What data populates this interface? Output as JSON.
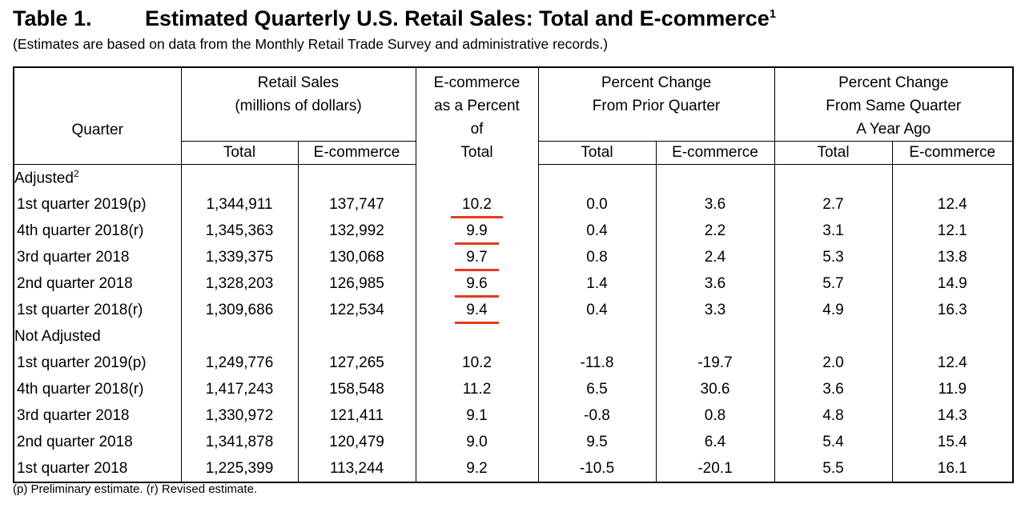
{
  "title": {
    "number": "Table 1.",
    "text": "Estimated Quarterly U.S. Retail Sales: Total and E-commerce",
    "sup": "1"
  },
  "subtitle": "(Estimates are based on data from the Monthly Retail Trade Survey and administrative records.)",
  "headers": {
    "quarter": "Quarter",
    "retail_sales_1": "Retail Sales",
    "retail_sales_2": "(millions of dollars)",
    "ecom_pct_1": "E-commerce",
    "ecom_pct_2": "as a Percent",
    "ecom_pct_3": "of",
    "ecom_pct_4": "Total",
    "prior_1": "Percent Change",
    "prior_2": "From Prior Quarter",
    "same_1": "Percent Change",
    "same_2": "From Same Quarter",
    "same_3": "A Year Ago",
    "total": "Total",
    "ecommerce": "E-commerce"
  },
  "sections": {
    "adjusted": "Adjusted",
    "adjusted_sup": "2",
    "not_adjusted": "Not Adjusted"
  },
  "adjusted_rows": [
    {
      "quarter": "1st quarter 2019(p)",
      "total": "1,344,911",
      "ecom": "137,747",
      "pct": "10.2",
      "pq_total": "0.0",
      "pq_ecom": "3.6",
      "yq_total": "2.7",
      "yq_ecom": "12.4"
    },
    {
      "quarter": "4th quarter 2018(r)",
      "total": "1,345,363",
      "ecom": "132,992",
      "pct": "9.9",
      "pq_total": "0.4",
      "pq_ecom": "2.2",
      "yq_total": "3.1",
      "yq_ecom": "12.1"
    },
    {
      "quarter": "3rd quarter 2018",
      "total": "1,339,375",
      "ecom": "130,068",
      "pct": "9.7",
      "pq_total": "0.8",
      "pq_ecom": "2.4",
      "yq_total": "5.3",
      "yq_ecom": "13.8"
    },
    {
      "quarter": "2nd quarter 2018",
      "total": "1,328,203",
      "ecom": "126,985",
      "pct": "9.6",
      "pq_total": "1.4",
      "pq_ecom": "3.6",
      "yq_total": "5.7",
      "yq_ecom": "14.9"
    },
    {
      "quarter": "1st quarter 2018(r)",
      "total": "1,309,686",
      "ecom": "122,534",
      "pct": "9.4",
      "pq_total": "0.4",
      "pq_ecom": "3.3",
      "yq_total": "4.9",
      "yq_ecom": "16.3"
    }
  ],
  "not_adjusted_rows": [
    {
      "quarter": "1st quarter 2019(p)",
      "total": "1,249,776",
      "ecom": "127,265",
      "pct": "10.2",
      "pq_total": "-11.8",
      "pq_ecom": "-19.7",
      "yq_total": "2.0",
      "yq_ecom": "12.4"
    },
    {
      "quarter": "4th quarter 2018(r)",
      "total": "1,417,243",
      "ecom": "158,548",
      "pct": "11.2",
      "pq_total": "6.5",
      "pq_ecom": "30.6",
      "yq_total": "3.6",
      "yq_ecom": "11.9"
    },
    {
      "quarter": "3rd quarter 2018",
      "total": "1,330,972",
      "ecom": "121,411",
      "pct": "9.1",
      "pq_total": "-0.8",
      "pq_ecom": "0.8",
      "yq_total": "4.8",
      "yq_ecom": "14.3"
    },
    {
      "quarter": "2nd quarter 2018",
      "total": "1,341,878",
      "ecom": "120,479",
      "pct": "9.0",
      "pq_total": "9.5",
      "pq_ecom": "6.4",
      "yq_total": "5.4",
      "yq_ecom": "15.4"
    },
    {
      "quarter": "1st quarter 2018",
      "total": "1,225,399",
      "ecom": "113,244",
      "pct": "9.2",
      "pq_total": "-10.5",
      "pq_ecom": "-20.1",
      "yq_total": "5.5",
      "yq_ecom": "16.1"
    }
  ],
  "footnote": "(p) Preliminary estimate. (r) Revised estimate.",
  "colors": {
    "highlight_underline": "#e8391f"
  }
}
